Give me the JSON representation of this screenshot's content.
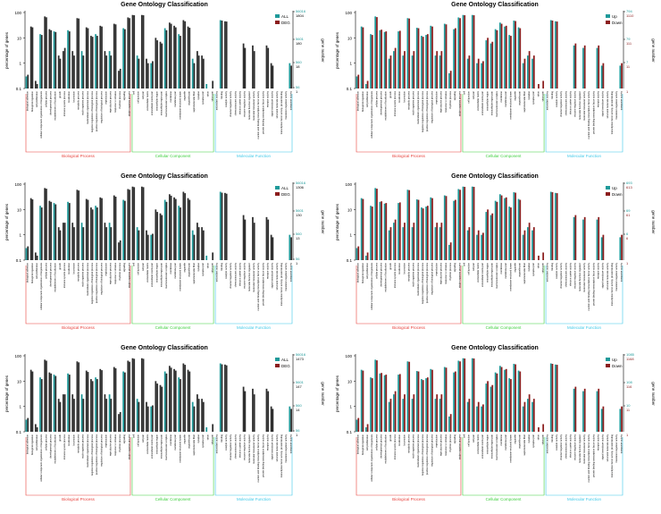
{
  "colors": {
    "left_a": "#2e2e2e",
    "left_b": "#1f9a9a",
    "up": "#1f9a9a",
    "down": "#8b1d1d",
    "bp": "#e8413c",
    "cc": "#3ccf3c",
    "mf": "#3cc8e8",
    "axis": "#000000"
  },
  "categories": [
    "biological adhesion",
    "biological regulation",
    "cell proliferation",
    "cellular component organization or biogenesis",
    "cellular process",
    "developmental process",
    "establishment of localization",
    "growth",
    "immune system process",
    "localization",
    "locomotion",
    "metabolic process",
    "multi-organism process",
    "multicellular organismal process",
    "negative regulation of biological process",
    "positive regulation of biological process",
    "regulation of biological process",
    "reproduction",
    "reproductive process",
    "response to stimulus",
    "rhythmic process",
    "signaling",
    "single-organism process",
    "cell",
    "cell junction",
    "cell part",
    "extracellular matrix",
    "extracellular matrix part",
    "extracellular region",
    "extracellular region part",
    "macromolecular complex",
    "membrane",
    "membrane part",
    "membrane-enclosed lumen",
    "organelle",
    "organelle part",
    "supramolecular fiber",
    "synapse",
    "synapse part",
    "virion",
    "virion part",
    "antioxidant activity",
    "binding",
    "catalytic activity",
    "channel regulator activity",
    "chemoattractant activity",
    "electron carrier activity",
    "enzyme regulator activity",
    "molecular function regulator",
    "molecular transducer activity",
    "nucleic acid binding transcription factor activity",
    "protein binding transcription factor activity",
    "receptor activity",
    "signal transducer activity",
    "structural molecule activity",
    "transcription factor activity, protein binding",
    "translation regulator activity",
    "transporter activity"
  ],
  "group_spans": [
    [
      0,
      22
    ],
    [
      23,
      40
    ],
    [
      41,
      57
    ]
  ],
  "chart_data": [
    {
      "type": "bar",
      "title": "Gene Ontology Classification",
      "ylabel": "percentage of genes",
      "y2label": "gene number",
      "yticks": [
        "100",
        "10",
        "1",
        "0.1"
      ],
      "right_ticks_a": [
        "56016",
        "5601",
        "560",
        "56"
      ],
      "right_ticks_b": [
        "1804",
        "180",
        "18",
        "1"
      ],
      "groups": [
        "Biological Process",
        "Cellular Component",
        "Molecular Function"
      ],
      "series": [
        {
          "name": "ALL",
          "values": [
            0.3,
            28,
            0.2,
            14,
            70,
            22,
            18,
            2,
            3,
            20,
            3,
            60,
            3,
            26,
            12,
            14,
            30,
            3,
            3,
            36,
            0.5,
            24,
            64,
            80,
            2,
            80,
            1.5,
            1,
            10,
            7,
            24,
            40,
            30,
            14,
            50,
            28,
            1.5,
            3,
            2,
            0.15,
            0.1,
            0.1,
            50,
            45,
            0.1,
            0.1,
            0.1,
            6,
            0.1,
            5,
            0.1,
            0.1,
            5,
            1,
            0.1,
            0.1,
            0.1,
            1
          ]
        },
        {
          "name": "DEG",
          "values": [
            0.35,
            26,
            0.15,
            13,
            65,
            20,
            17,
            1.5,
            4,
            18,
            2,
            58,
            2,
            24,
            11,
            12,
            28,
            2,
            2,
            34,
            0.6,
            22,
            60,
            78,
            1.5,
            78,
            1,
            1.2,
            8,
            6,
            20,
            36,
            26,
            12,
            45,
            25,
            1,
            2,
            1.5,
            0.1,
            0.2,
            0.1,
            48,
            44,
            0.1,
            0.1,
            0.1,
            4,
            0.1,
            3,
            0.1,
            0.1,
            4,
            0.8,
            0.1,
            0.1,
            0.1,
            0.8
          ]
        }
      ]
    },
    {
      "type": "bar",
      "title": "Gene Ontology Classification",
      "ylabel": "percentage of genes",
      "y2label": "gene number",
      "yticks": [
        "100",
        "10",
        "1",
        "0.1"
      ],
      "right_ticks_a": [
        "794",
        "79",
        "7"
      ],
      "right_ticks_b": [
        "1110",
        "111",
        "11",
        "1"
      ],
      "groups": [
        "Biological Process",
        "Cellular Component",
        "Molecular Function"
      ],
      "series": [
        {
          "name": "Up",
          "values": [
            0.3,
            28,
            0.15,
            14,
            70,
            20,
            17,
            1.5,
            3,
            18,
            2,
            60,
            2,
            25,
            12,
            13,
            30,
            2,
            2,
            36,
            0.4,
            22,
            64,
            80,
            1.5,
            80,
            1,
            1,
            8,
            6,
            22,
            40,
            28,
            13,
            48,
            26,
            1,
            2,
            1.5,
            0.1,
            0.1,
            0.1,
            50,
            45,
            0.1,
            0.1,
            0.1,
            5,
            0.1,
            4,
            0.1,
            0.1,
            4,
            0.8,
            0.1,
            0.1,
            0.1,
            0.8
          ]
        },
        {
          "name": "Down",
          "values": [
            0.35,
            26,
            0.2,
            13,
            66,
            21,
            18,
            2,
            4,
            19,
            3,
            58,
            3,
            24,
            11,
            14,
            28,
            3,
            3,
            34,
            0.5,
            24,
            60,
            78,
            2,
            78,
            1.5,
            1.2,
            10,
            7,
            20,
            36,
            30,
            12,
            46,
            24,
            1.5,
            3,
            2,
            0.15,
            0.2,
            0.1,
            48,
            44,
            0.1,
            0.1,
            0.1,
            6,
            0.1,
            5,
            0.1,
            0.1,
            5,
            1,
            0.1,
            0.1,
            0.1,
            1
          ]
        }
      ]
    },
    {
      "type": "bar",
      "title": "Gene Ontology Classification",
      "ylabel": "percentage of genes",
      "y2label": "gene number",
      "yticks": [
        "100",
        "10",
        "1",
        "0.1"
      ],
      "right_ticks_a": [
        "56016",
        "5601",
        "560",
        "56"
      ],
      "right_ticks_b": [
        "1306",
        "130",
        "13",
        "1"
      ],
      "groups": [
        "Biological Process",
        "Cellular Component",
        "Molecular Function"
      ],
      "series": [
        {
          "name": "ALL",
          "values": [
            0.3,
            28,
            0.2,
            14,
            70,
            22,
            18,
            2,
            3,
            20,
            3,
            60,
            3,
            26,
            12,
            14,
            30,
            3,
            3,
            36,
            0.5,
            24,
            64,
            80,
            2,
            80,
            1.5,
            1,
            10,
            7,
            24,
            40,
            30,
            14,
            50,
            28,
            1.5,
            3,
            2,
            0.15,
            0.1,
            0.1,
            50,
            45,
            0.1,
            0.1,
            0.1,
            6,
            0.1,
            5,
            0.1,
            0.1,
            5,
            1,
            0.1,
            0.1,
            0.1,
            1
          ]
        },
        {
          "name": "DEG",
          "values": [
            0.35,
            25,
            0.15,
            12,
            66,
            20,
            16,
            1.5,
            3,
            18,
            2,
            56,
            2,
            24,
            10,
            12,
            28,
            2,
            2,
            32,
            0.6,
            22,
            60,
            76,
            1.5,
            76,
            1,
            1.1,
            8,
            6,
            20,
            35,
            26,
            12,
            44,
            24,
            1,
            2,
            1.5,
            0.1,
            0.2,
            0.1,
            46,
            42,
            0.1,
            0.1,
            0.1,
            4,
            0.1,
            3,
            0.1,
            0.1,
            4,
            0.8,
            0.1,
            0.1,
            0.1,
            0.8
          ]
        }
      ]
    },
    {
      "type": "bar",
      "title": "Gene Ontology Classification",
      "ylabel": "percentage of genes",
      "y2label": "gene number",
      "yticks": [
        "100",
        "10",
        "1",
        "0.1"
      ],
      "right_ticks_a": [
        "693",
        "69",
        "6"
      ],
      "right_ticks_b": [
        "613",
        "61",
        "6",
        "1"
      ],
      "groups": [
        "Biological Process",
        "Cellular Component",
        "Molecular Function"
      ],
      "series": [
        {
          "name": "Up",
          "values": [
            0.3,
            28,
            0.15,
            14,
            70,
            20,
            17,
            1.5,
            3,
            18,
            2,
            60,
            2,
            25,
            12,
            13,
            30,
            2,
            2,
            36,
            0.4,
            22,
            64,
            80,
            1.5,
            80,
            1,
            1,
            8,
            6,
            22,
            40,
            28,
            13,
            48,
            26,
            1,
            2,
            1.5,
            0.1,
            0.1,
            0.1,
            50,
            45,
            0.1,
            0.1,
            0.1,
            5,
            0.1,
            4,
            0.1,
            0.1,
            4,
            0.8,
            0.1,
            0.1,
            0.1,
            0.8
          ]
        },
        {
          "name": "Down",
          "values": [
            0.35,
            26,
            0.2,
            13,
            66,
            21,
            18,
            2,
            4,
            19,
            3,
            58,
            3,
            24,
            11,
            14,
            28,
            3,
            3,
            34,
            0.5,
            24,
            60,
            78,
            2,
            78,
            1.5,
            1.2,
            10,
            7,
            20,
            36,
            30,
            12,
            46,
            24,
            1.5,
            3,
            2,
            0.15,
            0.2,
            0.1,
            48,
            44,
            0.1,
            0.1,
            0.1,
            6,
            0.1,
            5,
            0.1,
            0.1,
            5,
            1,
            0.1,
            0.1,
            0.1,
            1
          ]
        }
      ]
    },
    {
      "type": "bar",
      "title": "Gene Ontology Classification",
      "ylabel": "percentage of genes",
      "y2label": "gene number",
      "yticks": [
        "100",
        "10",
        "1",
        "0.1"
      ],
      "right_ticks_a": [
        "56016",
        "5601",
        "560",
        "56"
      ],
      "right_ticks_b": [
        "1473",
        "147",
        "14",
        "1"
      ],
      "groups": [
        "Biological Process",
        "Cellular Component",
        "Molecular Function"
      ],
      "series": [
        {
          "name": "ALL",
          "values": [
            0.3,
            28,
            0.2,
            14,
            70,
            22,
            18,
            2,
            3,
            20,
            3,
            60,
            3,
            26,
            12,
            14,
            30,
            3,
            3,
            36,
            0.5,
            24,
            64,
            80,
            2,
            80,
            1.5,
            1,
            10,
            7,
            24,
            40,
            30,
            14,
            50,
            28,
            1.5,
            3,
            2,
            0.15,
            0.1,
            0.1,
            50,
            45,
            0.1,
            0.1,
            0.1,
            6,
            0.1,
            5,
            0.1,
            0.1,
            5,
            1,
            0.1,
            0.1,
            0.1,
            1
          ]
        },
        {
          "name": "DEG",
          "values": [
            0.35,
            24,
            0.15,
            12,
            64,
            20,
            16,
            1.5,
            3,
            18,
            2,
            55,
            2,
            23,
            10,
            12,
            27,
            2,
            2,
            32,
            0.6,
            22,
            58,
            76,
            1.5,
            76,
            1,
            1.1,
            8,
            6,
            20,
            34,
            26,
            12,
            44,
            24,
            1,
            2,
            1.5,
            0.1,
            0.2,
            0.1,
            46,
            42,
            0.1,
            0.1,
            0.1,
            4,
            0.1,
            3,
            0.1,
            0.1,
            4,
            0.8,
            0.1,
            0.1,
            0.1,
            0.8
          ]
        }
      ]
    },
    {
      "type": "bar",
      "title": "Gene Ontology Classification",
      "ylabel": "percentage of genes",
      "y2label": "gene number",
      "yticks": [
        "100",
        "10",
        "1",
        "0.1"
      ],
      "right_ticks_a": [
        "1085",
        "108",
        "10"
      ],
      "right_ticks_b": [
        "1168",
        "116",
        "11",
        "1"
      ],
      "groups": [
        "Biological Process",
        "Cellular Component",
        "Molecular Function"
      ],
      "series": [
        {
          "name": "Up",
          "values": [
            0.3,
            28,
            0.15,
            14,
            70,
            20,
            17,
            1.5,
            3,
            18,
            2,
            60,
            2,
            25,
            12,
            13,
            30,
            2,
            2,
            36,
            0.4,
            22,
            64,
            80,
            1.5,
            80,
            1,
            1,
            8,
            6,
            22,
            40,
            28,
            13,
            48,
            26,
            1,
            2,
            1.5,
            0.1,
            0.1,
            0.1,
            50,
            45,
            0.1,
            0.1,
            0.1,
            5,
            0.1,
            4,
            0.1,
            0.1,
            4,
            0.8,
            0.1,
            0.1,
            0.1,
            0.8
          ]
        },
        {
          "name": "Down",
          "values": [
            0.35,
            26,
            0.2,
            13,
            66,
            21,
            18,
            2,
            4,
            19,
            3,
            58,
            3,
            24,
            11,
            14,
            28,
            3,
            3,
            34,
            0.5,
            24,
            60,
            78,
            2,
            78,
            1.5,
            1.2,
            10,
            7,
            20,
            36,
            30,
            12,
            46,
            24,
            1.5,
            3,
            2,
            0.15,
            0.2,
            0.1,
            48,
            44,
            0.1,
            0.1,
            0.1,
            6,
            0.1,
            5,
            0.1,
            0.1,
            5,
            1,
            0.1,
            0.1,
            0.1,
            1
          ]
        }
      ]
    }
  ]
}
